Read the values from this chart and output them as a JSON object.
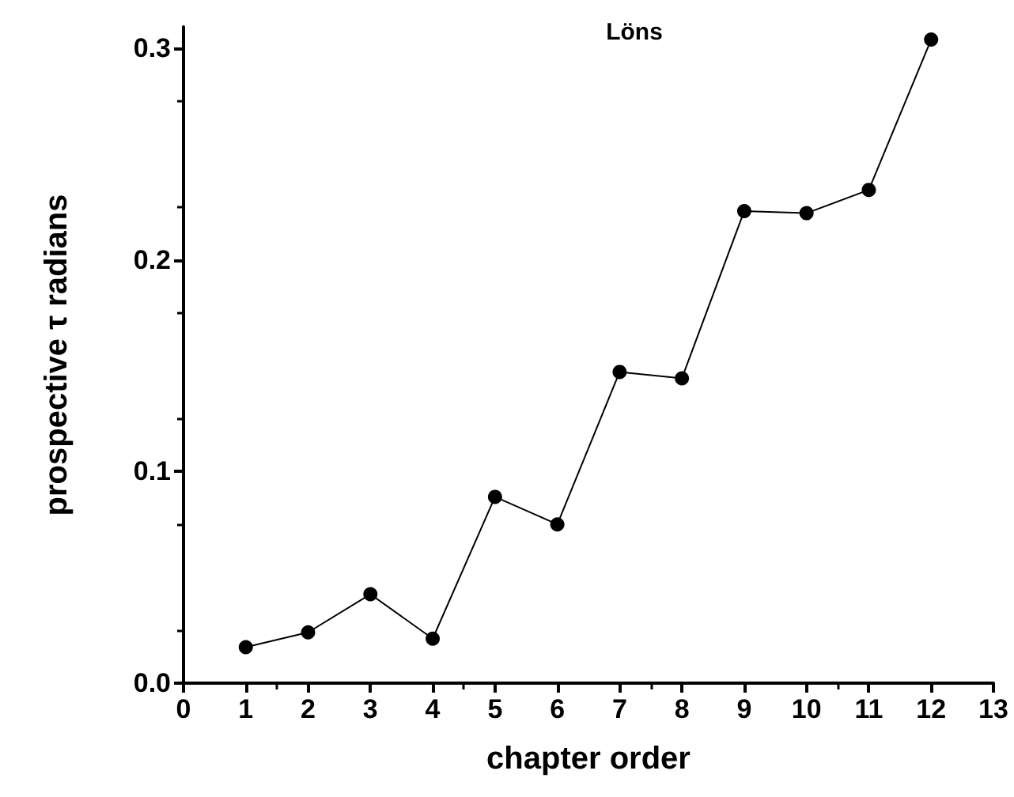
{
  "chart_data": {
    "type": "line",
    "title": "Löns",
    "xlabel": "chapter order",
    "ylabel": "prospective τ radians",
    "x": [
      1,
      2,
      3,
      4,
      5,
      6,
      7,
      8,
      9,
      10,
      11,
      12
    ],
    "series": [
      {
        "color": "#000000",
        "values": [
          0.017,
          0.024,
          0.042,
          0.021,
          0.088,
          0.075,
          0.147,
          0.144,
          0.223,
          0.222,
          0.233,
          0.304
        ]
      }
    ],
    "xlim": [
      0,
      13
    ],
    "xticks": [
      0,
      1,
      2,
      3,
      4,
      5,
      6,
      7,
      8,
      9,
      10,
      11,
      12,
      13
    ],
    "ylim": [
      0,
      0.31
    ],
    "yticks": [
      {
        "value": 0,
        "label": "0.0"
      },
      {
        "value": 0.1,
        "label": "0.1"
      },
      {
        "value": 0.2,
        "label": "0.2"
      },
      {
        "value": 0.3,
        "label": "0.3"
      }
    ],
    "grid": false,
    "marker": "circle",
    "line_style": "solid"
  }
}
